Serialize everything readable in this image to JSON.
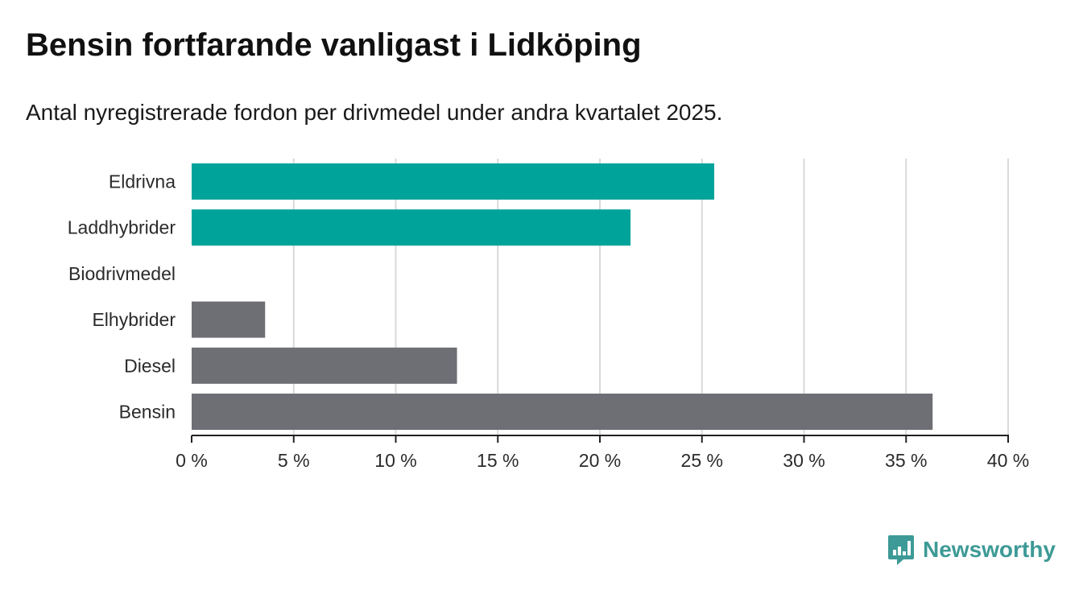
{
  "title": "Bensin fortfarande vanligast i Lidköping",
  "subtitle": "Antal nyregistrerade fordon per drivmedel under andra kvartalet 2025.",
  "brand": {
    "name": "Newsworthy",
    "color": "#3d9a96",
    "icon": "newsworthy-logo-icon"
  },
  "colors": {
    "highlight": "#00a39a",
    "default": "#6e6e75",
    "grid": "#d9d9d9",
    "axis": "#222222"
  },
  "chart_data": {
    "type": "bar",
    "orientation": "horizontal",
    "categories": [
      "Eldrivna",
      "Laddhybrider",
      "Biodrivmedel",
      "Elhybrider",
      "Diesel",
      "Bensin"
    ],
    "values": [
      25.6,
      21.5,
      0,
      3.6,
      13.0,
      36.3
    ],
    "bar_colors": [
      "#00a39a",
      "#00a39a",
      "#6e6e75",
      "#6e6e75",
      "#6e6e75",
      "#6e6e75"
    ],
    "xlim": [
      0,
      40
    ],
    "xticks": [
      0,
      5,
      10,
      15,
      20,
      25,
      30,
      35,
      40
    ],
    "xtick_labels": [
      "0 %",
      "5 %",
      "10 %",
      "15 %",
      "20 %",
      "25 %",
      "30 %",
      "35 %",
      "40 %"
    ],
    "xlabel": "",
    "ylabel": "",
    "grid": true
  }
}
